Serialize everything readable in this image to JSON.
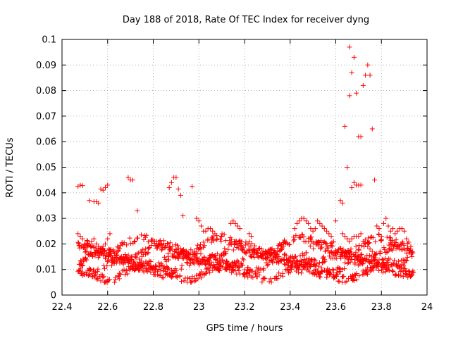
{
  "chart_data": {
    "type": "scatter",
    "title": "Day 188 of 2018, Rate Of TEC Index for receiver dyng",
    "xlabel": "GPS time / hours",
    "ylabel": "ROTI / TECUs",
    "xlim": [
      22.4,
      24
    ],
    "ylim": [
      0,
      0.1
    ],
    "xticks": [
      "22.4",
      "22.6",
      "22.8",
      "23",
      "23.2",
      "23.4",
      "23.6",
      "23.8",
      "24"
    ],
    "yticks": [
      "0",
      "0.01",
      "0.02",
      "0.03",
      "0.04",
      "0.05",
      "0.06",
      "0.07",
      "0.08",
      "0.09",
      "0.1"
    ],
    "grid": true,
    "marker": "+",
    "color": "#ff0000",
    "series": [
      {
        "name": "ROTI",
        "x": [
          22.47,
          22.48,
          22.49,
          22.52,
          22.54,
          22.55,
          22.56,
          22.57,
          22.58,
          22.59,
          22.6,
          22.69,
          22.7,
          22.71,
          22.73,
          22.87,
          22.88,
          22.89,
          22.9,
          22.91,
          22.92,
          22.93,
          22.97,
          23.64,
          23.65,
          23.66,
          23.66,
          23.67,
          23.67,
          23.68,
          23.69,
          23.7,
          23.71,
          23.72,
          23.73,
          23.74,
          23.75,
          23.76,
          23.77,
          23.62,
          23.63,
          23.68,
          23.69,
          23.7,
          23.71,
          23.63,
          23.64,
          23.65,
          23.66,
          23.67,
          23.68,
          23.69,
          23.7,
          23.71,
          23.72,
          23.73,
          23.74,
          23.75,
          23.76,
          23.77,
          23.78,
          23.79,
          23.8,
          23.81,
          23.82,
          23.83,
          23.84,
          23.85,
          23.86,
          23.87,
          23.88,
          23.89,
          23.9,
          23.91,
          23.92,
          23.93,
          22.99,
          23.0,
          23.01,
          23.02,
          23.03,
          23.04,
          23.05,
          23.06,
          23.07,
          23.08,
          23.14,
          23.15,
          23.16,
          23.17,
          23.18,
          23.22,
          23.23,
          23.42,
          23.43,
          23.44,
          23.45,
          23.46,
          23.47,
          23.48,
          23.49,
          23.5,
          23.51,
          23.52,
          23.53,
          23.54,
          23.55,
          23.56,
          23.57,
          23.58,
          23.59,
          23.6,
          22.47,
          22.48,
          22.49,
          22.5,
          22.51,
          22.52,
          22.53,
          22.54,
          22.55,
          22.56,
          22.57,
          22.58,
          22.59,
          22.6,
          22.61
        ],
        "y": [
          0.0425,
          0.043,
          0.0428,
          0.037,
          0.0365,
          0.0365,
          0.036,
          0.0415,
          0.041,
          0.042,
          0.043,
          0.046,
          0.045,
          0.045,
          0.033,
          0.042,
          0.044,
          0.046,
          0.046,
          0.0415,
          0.039,
          0.031,
          0.0425,
          0.066,
          0.05,
          0.078,
          0.097,
          0.087,
          0.042,
          0.093,
          0.079,
          0.062,
          0.062,
          0.082,
          0.086,
          0.09,
          0.086,
          0.065,
          0.045,
          0.037,
          0.036,
          0.044,
          0.043,
          0.043,
          0.043,
          0.024,
          0.023,
          0.022,
          0.021,
          0.022,
          0.023,
          0.023,
          0.023,
          0.024,
          0.021,
          0.02,
          0.019,
          0.018,
          0.017,
          0.016,
          0.027,
          0.026,
          0.023,
          0.028,
          0.03,
          0.027,
          0.025,
          0.026,
          0.024,
          0.025,
          0.026,
          0.026,
          0.025,
          0.022,
          0.018,
          0.016,
          0.03,
          0.029,
          0.027,
          0.025,
          0.025,
          0.026,
          0.026,
          0.025,
          0.024,
          0.022,
          0.028,
          0.029,
          0.028,
          0.027,
          0.026,
          0.024,
          0.023,
          0.026,
          0.028,
          0.029,
          0.03,
          0.03,
          0.029,
          0.028,
          0.026,
          0.025,
          0.026,
          0.029,
          0.028,
          0.027,
          0.026,
          0.025,
          0.024,
          0.023,
          0.021,
          0.029,
          0.024,
          0.023,
          0.022,
          0.02,
          0.019,
          0.02,
          0.021,
          0.022,
          0.02,
          0.019,
          0.018,
          0.019,
          0.02,
          0.022,
          0.024
        ],
        "band": {
          "description": "dense cluster of points spanning the full time range",
          "x_range": [
            22.47,
            23.94
          ],
          "y_range": [
            0.005,
            0.022
          ],
          "approx_points": 1500
        }
      }
    ]
  }
}
